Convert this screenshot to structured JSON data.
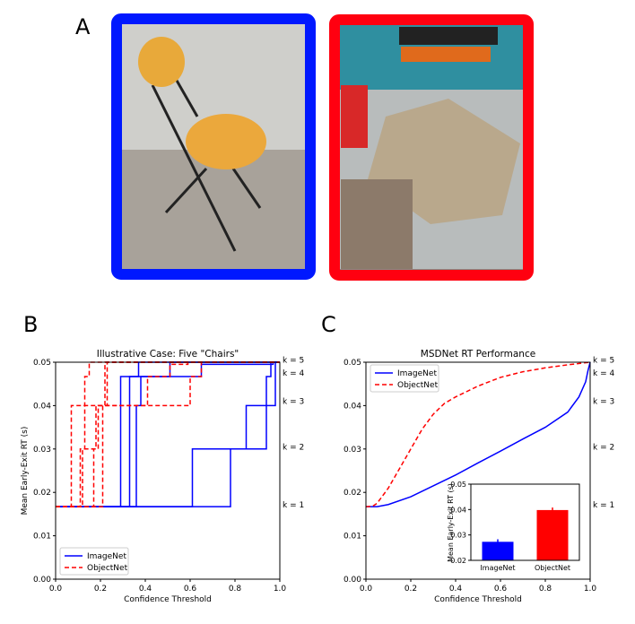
{
  "panels": {
    "a": "A",
    "b": "B",
    "c": "C"
  },
  "colors": {
    "imagenet": "#0000ff",
    "objectnet": "#ff0000",
    "blue_frame": "#0018ff",
    "red_frame": "#ff0010"
  },
  "photos": [
    {
      "frame_color": "blue",
      "subject": "folding chair"
    },
    {
      "frame_color": "red",
      "subject": "upturned plastic chair"
    }
  ],
  "k_labels": [
    {
      "label": "k = 1",
      "level": 0.0167
    },
    {
      "label": "k = 2",
      "level": 0.03
    },
    {
      "label": "k = 3",
      "level": 0.04
    },
    {
      "label": "k = 4",
      "level": 0.0467
    },
    {
      "label": "k = 5",
      "level": 0.05
    }
  ],
  "chart_data": [
    {
      "type": "line",
      "title": "Illustrative Case: Five \"Chairs\"",
      "xlabel": "Confidence Threshold",
      "ylabel": "Mean Early-Exit RT (s)",
      "xlim": [
        0,
        1
      ],
      "ylim": [
        0,
        0.05
      ],
      "xticks": [
        "0.0",
        "0.2",
        "0.4",
        "0.6",
        "0.8",
        "1.0"
      ],
      "yticks": [
        "0.00",
        "0.01",
        "0.02",
        "0.03",
        "0.04",
        "0.05"
      ],
      "legend": "lower-left",
      "series": [
        {
          "name": "ImageNet",
          "style": "solid",
          "color": "#0000ff",
          "steps": [
            [
              [
                0,
                0.0167
              ],
              [
                0.29,
                0.0467
              ],
              [
                0.37,
                0.05
              ],
              [
                1,
                0.05
              ]
            ],
            [
              [
                0,
                0.0167
              ],
              [
                0.33,
                0.0467
              ],
              [
                0.51,
                0.05
              ],
              [
                1,
                0.05
              ]
            ],
            [
              [
                0,
                0.0167
              ],
              [
                0.36,
                0.04
              ],
              [
                0.38,
                0.0467
              ],
              [
                0.65,
                0.0495
              ],
              [
                0.96,
                0.05
              ],
              [
                1,
                0.05
              ]
            ],
            [
              [
                0,
                0.0167
              ],
              [
                0.61,
                0.03
              ],
              [
                0.85,
                0.04
              ],
              [
                0.94,
                0.0467
              ],
              [
                0.96,
                0.0495
              ],
              [
                0.97,
                0.05
              ],
              [
                1,
                0.05
              ]
            ],
            [
              [
                0,
                0.0167
              ],
              [
                0.78,
                0.03
              ],
              [
                0.94,
                0.04
              ],
              [
                0.98,
                0.05
              ],
              [
                1,
                0.05
              ]
            ]
          ]
        },
        {
          "name": "ObjectNet",
          "style": "dashed",
          "color": "#ff0000",
          "steps": [
            [
              [
                0,
                0.0167
              ],
              [
                0.07,
                0.04
              ],
              [
                0.13,
                0.0467
              ],
              [
                0.15,
                0.05
              ],
              [
                1,
                0.05
              ]
            ],
            [
              [
                0,
                0.0167
              ],
              [
                0.11,
                0.03
              ],
              [
                0.13,
                0.04
              ],
              [
                0.22,
                0.05
              ],
              [
                1,
                0.05
              ]
            ],
            [
              [
                0,
                0.0167
              ],
              [
                0.12,
                0.03
              ],
              [
                0.18,
                0.04
              ],
              [
                0.23,
                0.05
              ],
              [
                1,
                0.05
              ]
            ],
            [
              [
                0,
                0.0167
              ],
              [
                0.17,
                0.03
              ],
              [
                0.19,
                0.04
              ],
              [
                0.41,
                0.0467
              ],
              [
                0.51,
                0.0495
              ],
              [
                0.59,
                0.05
              ],
              [
                1,
                0.05
              ]
            ],
            [
              [
                0,
                0.0167
              ],
              [
                0.21,
                0.04
              ],
              [
                0.6,
                0.0467
              ],
              [
                0.65,
                0.05
              ],
              [
                1,
                0.05
              ]
            ]
          ]
        }
      ]
    },
    {
      "type": "line",
      "title": "MSDNet RT Performance",
      "xlabel": "Confidence Threshold",
      "ylabel": "",
      "xlim": [
        0,
        1
      ],
      "ylim": [
        0,
        0.05
      ],
      "xticks": [
        "0.0",
        "0.2",
        "0.4",
        "0.6",
        "0.8",
        "1.0"
      ],
      "yticks": [
        "0.00",
        "0.01",
        "0.02",
        "0.03",
        "0.04",
        "0.05"
      ],
      "legend": "upper-left",
      "series": [
        {
          "name": "ImageNet",
          "style": "solid",
          "color": "#0000ff",
          "x": [
            0,
            0.05,
            0.1,
            0.2,
            0.3,
            0.4,
            0.5,
            0.6,
            0.7,
            0.8,
            0.9,
            0.95,
            0.98,
            0.99,
            1.0
          ],
          "y": [
            0.0167,
            0.0167,
            0.0172,
            0.019,
            0.0215,
            0.024,
            0.0268,
            0.0295,
            0.0323,
            0.035,
            0.0385,
            0.042,
            0.0455,
            0.048,
            0.05
          ]
        },
        {
          "name": "ObjectNet",
          "style": "dashed",
          "color": "#ff0000",
          "x": [
            0,
            0.03,
            0.05,
            0.1,
            0.15,
            0.2,
            0.25,
            0.3,
            0.35,
            0.4,
            0.5,
            0.6,
            0.7,
            0.8,
            0.9,
            1.0
          ],
          "y": [
            0.0167,
            0.0168,
            0.0175,
            0.021,
            0.0255,
            0.03,
            0.0345,
            0.038,
            0.0405,
            0.042,
            0.0445,
            0.0465,
            0.0478,
            0.0487,
            0.0494,
            0.05
          ]
        }
      ]
    },
    {
      "type": "bar",
      "title": "",
      "ylabel": "Mean Early-Exit RT (s)",
      "categories": [
        "ImageNet",
        "ObjectNet"
      ],
      "values": [
        0.0273,
        0.0398
      ],
      "errors": [
        0.001,
        0.001
      ],
      "colors": [
        "#0000ff",
        "#ff0000"
      ],
      "ylim": [
        0.02,
        0.05
      ],
      "yticks": [
        "0.02",
        "0.03",
        "0.04",
        "0.05"
      ]
    }
  ]
}
